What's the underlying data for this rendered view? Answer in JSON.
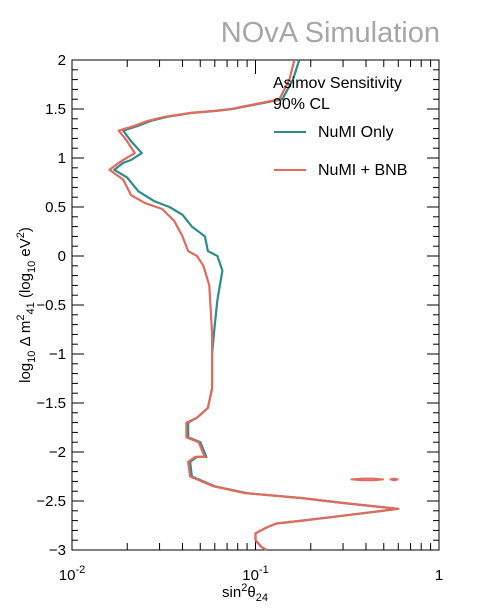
{
  "watermark": "NOvA Simulation",
  "colors": {
    "numi_only": "#2e8b8b",
    "numi_bnb": "#e06a5c",
    "axis": "#000000",
    "watermark": "#a6a6a6"
  },
  "chart_data": {
    "type": "line",
    "title": "",
    "xscale": "log",
    "xlim": [
      0.01,
      1
    ],
    "ylim": [
      -3,
      2
    ],
    "grid": false,
    "legend_placement": "top-right",
    "legend_title": [
      "Asimov Sensitivity",
      "90% CL"
    ],
    "x_tick_labels": [
      {
        "value": 0.01,
        "label": "10",
        "sup": "-2"
      },
      {
        "value": 0.1,
        "label": "10",
        "sup": "-1"
      },
      {
        "value": 1,
        "label": "1",
        "sup": ""
      }
    ],
    "y_tick_labels": [
      {
        "value": 2,
        "label": "2"
      },
      {
        "value": 1.5,
        "label": "1.5"
      },
      {
        "value": 1,
        "label": "1"
      },
      {
        "value": 0.5,
        "label": "0.5"
      },
      {
        "value": 0,
        "label": "0"
      },
      {
        "value": -0.5,
        "label": "−0.5"
      },
      {
        "value": -1,
        "label": "−1"
      },
      {
        "value": -1.5,
        "label": "−1.5"
      },
      {
        "value": -2,
        "label": "−2"
      },
      {
        "value": -2.5,
        "label": "−2.5"
      },
      {
        "value": -3,
        "label": "−3"
      }
    ],
    "xlabel": {
      "base": "sin",
      "sup": "2",
      "theta": "θ",
      "sub": "24"
    },
    "ylabel": {
      "p1": "log",
      "p1sub": "10",
      "p2": " Δ m",
      "p2sup": "2",
      "p2sub": "41",
      "p3": " (log",
      "p3sub": "10",
      "p4": " eV",
      "p4sup": "2",
      "p5": ")"
    },
    "series": [
      {
        "name": "NuMI Only",
        "color_key": "numi_only",
        "points": [
          [
            0.173,
            2.0
          ],
          [
            0.16,
            1.8
          ],
          [
            0.14,
            1.6
          ],
          [
            0.11,
            1.56
          ],
          [
            0.09,
            1.53
          ],
          [
            0.075,
            1.5
          ],
          [
            0.06,
            1.48
          ],
          [
            0.045,
            1.46
          ],
          [
            0.033,
            1.42
          ],
          [
            0.027,
            1.38
          ],
          [
            0.023,
            1.33
          ],
          [
            0.019,
            1.28
          ],
          [
            0.021,
            1.17
          ],
          [
            0.024,
            1.05
          ],
          [
            0.021,
            0.98
          ],
          [
            0.019,
            0.95
          ],
          [
            0.017,
            0.88
          ],
          [
            0.02,
            0.8
          ],
          [
            0.023,
            0.66
          ],
          [
            0.028,
            0.56
          ],
          [
            0.034,
            0.5
          ],
          [
            0.04,
            0.42
          ],
          [
            0.045,
            0.3
          ],
          [
            0.053,
            0.2
          ],
          [
            0.055,
            0.05
          ],
          [
            0.062,
            0.0
          ],
          [
            0.066,
            -0.15
          ],
          [
            0.062,
            -0.45
          ],
          [
            0.06,
            -0.7
          ],
          [
            0.058,
            -1.0
          ],
          [
            0.058,
            -1.35
          ],
          [
            0.055,
            -1.55
          ],
          [
            0.048,
            -1.65
          ],
          [
            0.043,
            -1.7
          ],
          [
            0.043,
            -1.85
          ],
          [
            0.05,
            -1.9
          ],
          [
            0.054,
            -2.05
          ],
          [
            0.048,
            -2.05
          ],
          [
            0.044,
            -2.1
          ],
          [
            0.045,
            -2.25
          ],
          [
            0.06,
            -2.35
          ],
          [
            0.09,
            -2.42
          ],
          [
            0.18,
            -2.47
          ],
          [
            0.3,
            -2.52
          ],
          [
            0.6,
            -2.58
          ],
          [
            0.3,
            -2.65
          ],
          [
            0.18,
            -2.7
          ],
          [
            0.13,
            -2.73
          ],
          [
            0.115,
            -2.77
          ],
          [
            0.1,
            -2.83
          ],
          [
            0.1,
            -2.9
          ],
          [
            0.108,
            -2.97
          ],
          [
            0.115,
            -3.0
          ]
        ]
      },
      {
        "name": "NuMI + BNB",
        "color_key": "numi_bnb",
        "points": [
          [
            0.163,
            2.0
          ],
          [
            0.153,
            1.8
          ],
          [
            0.135,
            1.6
          ],
          [
            0.107,
            1.56
          ],
          [
            0.088,
            1.53
          ],
          [
            0.074,
            1.5
          ],
          [
            0.059,
            1.48
          ],
          [
            0.044,
            1.46
          ],
          [
            0.032,
            1.42
          ],
          [
            0.026,
            1.38
          ],
          [
            0.022,
            1.33
          ],
          [
            0.018,
            1.28
          ],
          [
            0.02,
            1.17
          ],
          [
            0.022,
            1.05
          ],
          [
            0.019,
            0.98
          ],
          [
            0.018,
            0.95
          ],
          [
            0.016,
            0.88
          ],
          [
            0.019,
            0.78
          ],
          [
            0.021,
            0.62
          ],
          [
            0.025,
            0.54
          ],
          [
            0.031,
            0.48
          ],
          [
            0.036,
            0.36
          ],
          [
            0.04,
            0.2
          ],
          [
            0.043,
            0.05
          ],
          [
            0.048,
            0.0
          ],
          [
            0.052,
            -0.1
          ],
          [
            0.056,
            -0.3
          ],
          [
            0.057,
            -0.55
          ],
          [
            0.058,
            -0.8
          ],
          [
            0.058,
            -1.1
          ],
          [
            0.058,
            -1.35
          ],
          [
            0.055,
            -1.55
          ],
          [
            0.048,
            -1.65
          ],
          [
            0.042,
            -1.7
          ],
          [
            0.042,
            -1.85
          ],
          [
            0.049,
            -1.9
          ],
          [
            0.053,
            -2.05
          ],
          [
            0.047,
            -2.05
          ],
          [
            0.043,
            -2.1
          ],
          [
            0.044,
            -2.25
          ],
          [
            0.059,
            -2.35
          ],
          [
            0.088,
            -2.42
          ],
          [
            0.18,
            -2.47
          ],
          [
            0.3,
            -2.52
          ],
          [
            0.6,
            -2.58
          ],
          [
            0.3,
            -2.65
          ],
          [
            0.18,
            -2.7
          ],
          [
            0.13,
            -2.73
          ],
          [
            0.115,
            -2.77
          ],
          [
            0.1,
            -2.83
          ],
          [
            0.1,
            -2.9
          ],
          [
            0.108,
            -2.97
          ],
          [
            0.115,
            -3.0
          ]
        ],
        "islands": [
          [
            [
              0.33,
              -2.28
            ],
            [
              0.38,
              -2.27
            ],
            [
              0.44,
              -2.27
            ],
            [
              0.5,
              -2.28
            ],
            [
              0.44,
              -2.29
            ],
            [
              0.38,
              -2.29
            ],
            [
              0.33,
              -2.28
            ]
          ],
          [
            [
              0.54,
              -2.28
            ],
            [
              0.57,
              -2.27
            ],
            [
              0.6,
              -2.28
            ],
            [
              0.57,
              -2.29
            ],
            [
              0.54,
              -2.28
            ]
          ]
        ]
      }
    ]
  }
}
